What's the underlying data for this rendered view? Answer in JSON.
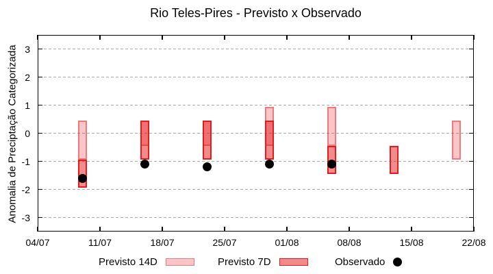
{
  "title": "Rio Teles-Pires - Previsto x Observado",
  "chart_data": {
    "type": "bar",
    "subtype": "interval-bars-with-observed-points",
    "title": "Rio Teles-Pires - Previsto x Observado",
    "xlabel": "",
    "ylabel": "Anomalia de Preciptação Categorizada",
    "ylim": [
      -3.5,
      3.5
    ],
    "y_ticks": [
      -3,
      -2,
      -1,
      0,
      1,
      2,
      3
    ],
    "x_axis_dates": [
      "04/07",
      "11/07",
      "18/07",
      "25/07",
      "01/08",
      "08/08",
      "15/08",
      "22/08"
    ],
    "x_tick_days": [
      0,
      7,
      14,
      21,
      28,
      35,
      42,
      49
    ],
    "x_span_days": 49,
    "grid": "horizontal-dashed",
    "legend_position": "bottom-center",
    "colors": {
      "base_red": "#e41a1c",
      "fill_14d": "rgba(228,26,28,0.25)",
      "border_14d": "rgba(228,26,28,0.45)",
      "fill_7d": "rgba(228,26,28,0.5)",
      "border_7d": "#e41a1c",
      "observado": "#000000",
      "grid_gray": "#a9a9a9"
    },
    "series": [
      {
        "name": "Previsto 14D",
        "type": "interval-bar",
        "points": [
          {
            "date": "09/07",
            "day": 5,
            "low": -0.95,
            "high": 0.45
          },
          {
            "date": "16/07",
            "day": 12,
            "low": -0.45,
            "high": 0.45
          },
          {
            "date": "23/07",
            "day": 19,
            "low": -0.45,
            "high": 0.45
          },
          {
            "date": "30/07",
            "day": 26,
            "low": -0.45,
            "high": 0.95
          },
          {
            "date": "06/08",
            "day": 33,
            "low": -0.45,
            "high": 0.95
          },
          {
            "date": "20/08",
            "day": 47,
            "low": -0.95,
            "high": 0.45
          }
        ]
      },
      {
        "name": "Previsto 7D",
        "type": "interval-bar",
        "points": [
          {
            "date": "09/07",
            "day": 5,
            "low": -1.95,
            "high": -0.95
          },
          {
            "date": "16/07",
            "day": 12,
            "low": -0.95,
            "high": 0.45
          },
          {
            "date": "23/07",
            "day": 19,
            "low": -0.95,
            "high": 0.45
          },
          {
            "date": "30/07",
            "day": 26,
            "low": -0.95,
            "high": 0.45
          },
          {
            "date": "06/08",
            "day": 33,
            "low": -1.45,
            "high": -0.45
          },
          {
            "date": "13/08",
            "day": 40,
            "low": -1.45,
            "high": -0.45
          }
        ]
      },
      {
        "name": "Observado",
        "type": "point",
        "points": [
          {
            "date": "09/07",
            "day": 5,
            "value": -1.6
          },
          {
            "date": "16/07",
            "day": 12,
            "value": -1.1
          },
          {
            "date": "23/07",
            "day": 19,
            "value": -1.2
          },
          {
            "date": "30/07",
            "day": 26,
            "value": -1.1
          },
          {
            "date": "06/08",
            "day": 33,
            "value": -1.1
          }
        ]
      }
    ]
  }
}
